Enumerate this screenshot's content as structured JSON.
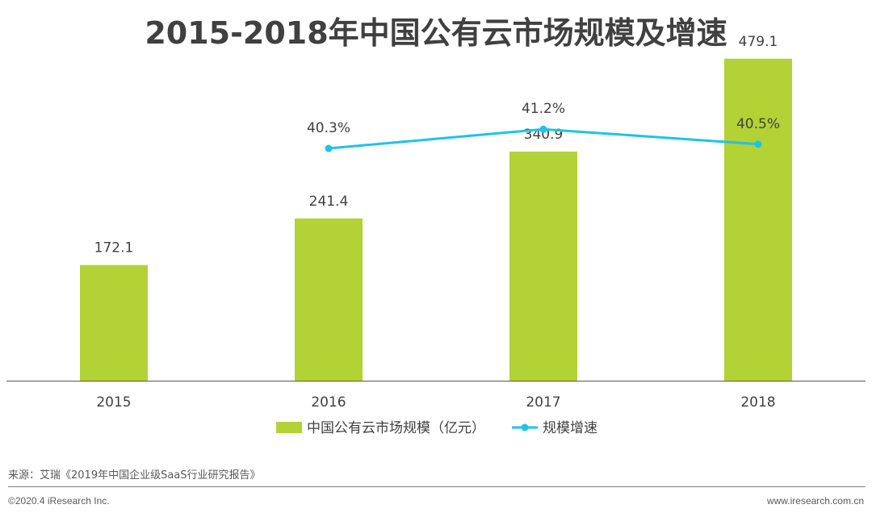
{
  "chart_data": {
    "type": "bar",
    "title": "2015-2018年中国公有云市场规模及增速",
    "categories": [
      "2015",
      "2016",
      "2017",
      "2018"
    ],
    "series": [
      {
        "name": "中国公有云市场规模（亿元）",
        "type": "bar",
        "color": "#b2d235",
        "values": [
          172.1,
          241.4,
          340.9,
          479.1
        ],
        "labels": [
          "172.1",
          "241.4",
          "340.9",
          "479.1"
        ]
      },
      {
        "name": "规模增速",
        "type": "line",
        "color": "#1ec3e6",
        "values": [
          null,
          40.3,
          41.2,
          40.5
        ],
        "labels": [
          "",
          "40.3%",
          "41.2%",
          "40.5%"
        ]
      }
    ],
    "xlabel": "",
    "ylabel": "",
    "ylim": [
      0,
      480
    ],
    "y2lim": [
      0,
      50
    ],
    "legend_position": "bottom"
  },
  "source": "来源：艾瑞《2019年中国企业级SaaS行业研究报告》",
  "copyright": "©2020.4 iResearch Inc.",
  "website": "www.iresearch.com.cn"
}
